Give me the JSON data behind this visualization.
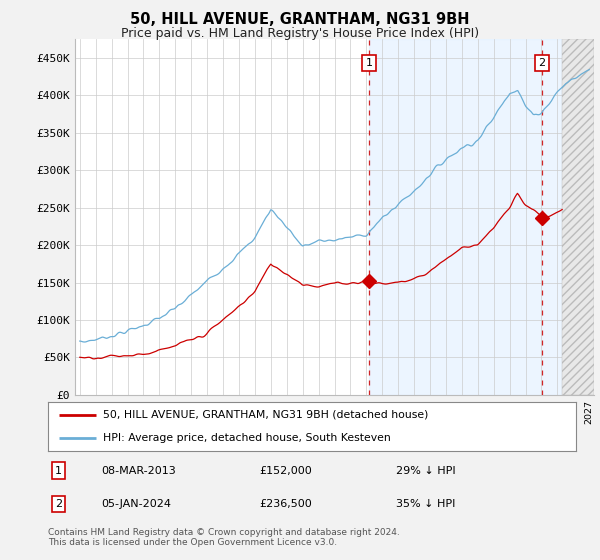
{
  "title": "50, HILL AVENUE, GRANTHAM, NG31 9BH",
  "subtitle": "Price paid vs. HM Land Registry's House Price Index (HPI)",
  "title_fontsize": 10.5,
  "subtitle_fontsize": 9,
  "ylim": [
    0,
    475000
  ],
  "yticks": [
    0,
    50000,
    100000,
    150000,
    200000,
    250000,
    300000,
    350000,
    400000,
    450000
  ],
  "ytick_labels": [
    "£0",
    "£50K",
    "£100K",
    "£150K",
    "£200K",
    "£250K",
    "£300K",
    "£350K",
    "£400K",
    "£450K"
  ],
  "hpi_color": "#6aaed6",
  "price_color": "#cc0000",
  "sale1_date": "08-MAR-2013",
  "sale1_price": 152000,
  "sale1_pct": "29%",
  "sale1_year": 2013.18,
  "sale2_date": "05-JAN-2024",
  "sale2_price": 236500,
  "sale2_pct": "35%",
  "sale2_year": 2024.02,
  "legend_label1": "50, HILL AVENUE, GRANTHAM, NG31 9BH (detached house)",
  "legend_label2": "HPI: Average price, detached house, South Kesteven",
  "footnote": "Contains HM Land Registry data © Crown copyright and database right 2024.\nThis data is licensed under the Open Government Licence v3.0.",
  "background_color": "#f2f2f2",
  "plot_bg_color": "#ffffff",
  "hatch_start": 2025.3,
  "xmin": 1994.7,
  "xmax": 2027.3
}
